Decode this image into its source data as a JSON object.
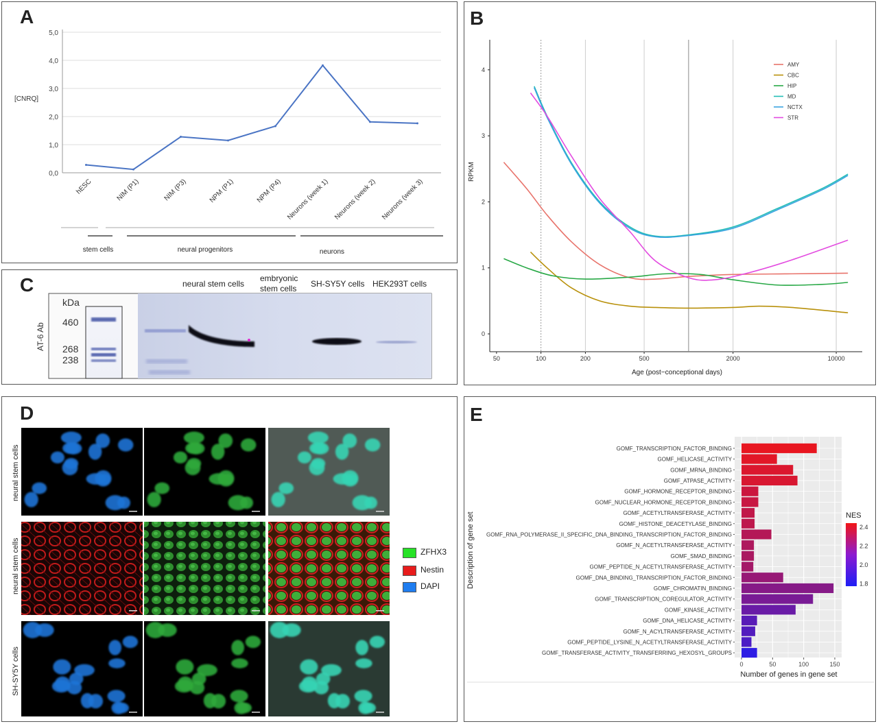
{
  "panels": {
    "A": "A",
    "B": "B",
    "C": "C",
    "D": "D",
    "E": "E"
  },
  "chart_a": {
    "type": "line",
    "ylabel": "[CNRQ]",
    "categories": [
      "hESC",
      "NIM (P1)",
      "NIM (P3)",
      "NPM (P1)",
      "NPM (P4)",
      "Neurons (week 1)",
      "Neurons (week 2)",
      "Neurons (week 3)"
    ],
    "values": [
      0.28,
      0.12,
      1.28,
      1.15,
      1.66,
      3.82,
      1.81,
      1.76
    ],
    "yticks": [
      "0,0",
      "1,0",
      "2,0",
      "3,0",
      "4,0",
      "5,0"
    ],
    "ylim": [
      0,
      5
    ],
    "groups": [
      "stem cells",
      "neural progenitors",
      "neurons"
    ],
    "color": "#4a74c4"
  },
  "chart_b": {
    "type": "line",
    "xlabel": "Age (post−conceptional days)",
    "ylabel": "RPKM",
    "xscale": "log",
    "xticks": [
      "50",
      "100",
      "200",
      "500",
      "2000",
      "10000"
    ],
    "yticks": [
      "0",
      "1",
      "2",
      "3",
      "4"
    ],
    "legend_position": "top-right",
    "series": [
      {
        "name": "AMY",
        "color": "#e8736b",
        "x": [
          56,
          80,
          110,
          160,
          250,
          400,
          600,
          1000,
          2000,
          5000,
          12000
        ],
        "y": [
          2.6,
          2.2,
          1.8,
          1.4,
          1.05,
          0.85,
          0.83,
          0.87,
          0.9,
          0.91,
          0.92
        ]
      },
      {
        "name": "CBC",
        "color": "#b8900a",
        "x": [
          85,
          110,
          160,
          250,
          400,
          600,
          1000,
          2000,
          3000,
          5000,
          12000
        ],
        "y": [
          1.24,
          1.0,
          0.7,
          0.5,
          0.42,
          0.4,
          0.39,
          0.4,
          0.42,
          0.4,
          0.32
        ]
      },
      {
        "name": "HIP",
        "color": "#27a845",
        "x": [
          56,
          80,
          120,
          200,
          400,
          700,
          1200,
          2000,
          4000,
          8000,
          12000
        ],
        "y": [
          1.14,
          1.0,
          0.88,
          0.83,
          0.86,
          0.91,
          0.9,
          0.82,
          0.74,
          0.75,
          0.78
        ]
      },
      {
        "name": "MD",
        "color": "#22bdb6",
        "x": [
          90,
          110,
          160,
          250,
          400,
          600,
          1000,
          2000,
          4000,
          8000,
          12000
        ],
        "y": [
          3.75,
          3.3,
          2.6,
          2.0,
          1.62,
          1.48,
          1.5,
          1.62,
          1.9,
          2.2,
          2.42
        ]
      },
      {
        "name": "NCTX",
        "color": "#3aa3e0",
        "x": [
          90,
          110,
          160,
          250,
          400,
          600,
          1000,
          2000,
          4000,
          8000,
          12000
        ],
        "y": [
          3.73,
          3.28,
          2.58,
          1.98,
          1.6,
          1.47,
          1.49,
          1.6,
          1.88,
          2.18,
          2.4
        ]
      },
      {
        "name": "STR",
        "color": "#e34be0",
        "x": [
          85,
          110,
          160,
          250,
          400,
          600,
          1000,
          1500,
          2500,
          5000,
          12000
        ],
        "y": [
          3.65,
          3.3,
          2.7,
          2.05,
          1.55,
          1.1,
          0.85,
          0.82,
          0.92,
          1.12,
          1.42
        ]
      }
    ]
  },
  "panel_c": {
    "kda_label": "kDa",
    "ab_label": "AT-6 Ab",
    "markers": [
      "460",
      "268",
      "238"
    ],
    "lanes": [
      "neural stem cells",
      "embryonic\nstem cells",
      "SH-SY5Y cells",
      "HEK293T cells"
    ]
  },
  "panel_d": {
    "row_labels": [
      "neural stem cells",
      "neural stem cells",
      "SH-SY5Y cells"
    ],
    "legend": [
      {
        "label": "ZFHX3",
        "color": "#27e227"
      },
      {
        "label": "Nestin",
        "color": "#e81c1c"
      },
      {
        "label": "DAPI",
        "color": "#1f7df0"
      }
    ]
  },
  "chart_data": {
    "type": "bar",
    "orientation": "horizontal",
    "xlabel": "Number of genes in gene set",
    "ylabel": "Description of gene set",
    "xticks": [
      "0",
      "50",
      "100",
      "150"
    ],
    "xlim": [
      0,
      150
    ],
    "legend_title": "NES",
    "legend_ticks": [
      "2.4",
      "2.2",
      "2.0",
      "1.8"
    ],
    "color_scale": {
      "low": "#1e1ef5",
      "high": "#f21616",
      "min": 1.8,
      "max": 2.45
    },
    "categories": [
      "GOMF_TRANSCRIPTION_FACTOR_BINDING",
      "GOMF_HELICASE_ACTIVITY",
      "GOMF_MRNA_BINDING",
      "GOMF_ATPASE_ACTIVITY",
      "GOMF_HORMONE_RECEPTOR_BINDING",
      "GOMF_NUCLEAR_HORMONE_RECEPTOR_BINDING",
      "GOMF_ACETYLTRANSFERASE_ACTIVITY",
      "GOMF_HISTONE_DEACETYLASE_BINDING",
      "GOMF_RNA_POLYMERASE_II_SPECIFIC_DNA_BINDING_TRANSCRIPTION_FACTOR_BINDING",
      "GOMF_N_ACETYLTRANSFERASE_ACTIVITY",
      "GOMF_SMAD_BINDING",
      "GOMF_PEPTIDE_N_ACETYLTRANSFERASE_ACTIVITY",
      "GOMF_DNA_BINDING_TRANSCRIPTION_FACTOR_BINDING",
      "GOMF_CHROMATIN_BINDING",
      "GOMF_TRANSCRIPTION_COREGULATOR_ACTIVITY",
      "GOMF_KINASE_ACTIVITY",
      "GOMF_DNA_HELICASE_ACTIVITY",
      "GOMF_N_ACYLTRANSFERASE_ACTIVITY",
      "GOMF_PEPTIDE_LYSINE_N_ACETYLTRANSFERASE_ACTIVITY",
      "GOMF_TRANSFERASE_ACTIVITY_TRANSFERRING_HEXOSYL_GROUPS"
    ],
    "values": [
      121,
      57,
      83,
      90,
      27,
      27,
      21,
      21,
      48,
      20,
      20,
      19,
      67,
      148,
      115,
      87,
      25,
      22,
      16,
      25
    ],
    "nes": [
      2.42,
      2.4,
      2.38,
      2.37,
      2.33,
      2.32,
      2.3,
      2.29,
      2.26,
      2.24,
      2.23,
      2.21,
      2.17,
      2.12,
      2.08,
      2.03,
      1.98,
      1.96,
      1.94,
      1.85
    ]
  }
}
